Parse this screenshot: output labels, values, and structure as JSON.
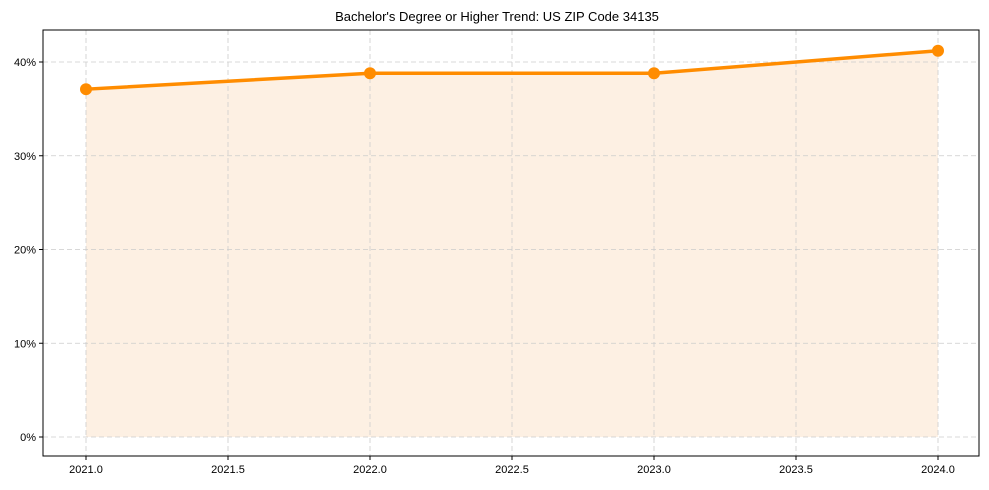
{
  "chart_data": {
    "type": "line",
    "title": "Bachelor's Degree or Higher Trend: US ZIP Code 34135",
    "xlabel": "",
    "ylabel": "",
    "x": [
      2021,
      2022,
      2023,
      2024
    ],
    "series": [
      {
        "name": "Bachelor's Degree or Higher",
        "values": [
          37.1,
          38.8,
          38.8,
          41.2
        ]
      }
    ],
    "fill_under_line": true,
    "xticks": [
      "2021.0",
      "2021.5",
      "2022.0",
      "2022.5",
      "2023.0",
      "2023.5",
      "2024.0"
    ],
    "xtick_values": [
      2021.0,
      2021.5,
      2022.0,
      2022.5,
      2023.0,
      2023.5,
      2024.0
    ],
    "yticks": [
      "0%",
      "10%",
      "20%",
      "30%",
      "40%"
    ],
    "ytick_values": [
      0,
      10,
      20,
      30,
      40
    ],
    "xlim": [
      2020.85,
      2024.15
    ],
    "ylim": [
      -2.06,
      43.3
    ],
    "grid": true,
    "legend": null,
    "colors": {
      "line": "#ff8c00",
      "fill": "#fdf0e3",
      "grid": "#cccccc"
    }
  }
}
